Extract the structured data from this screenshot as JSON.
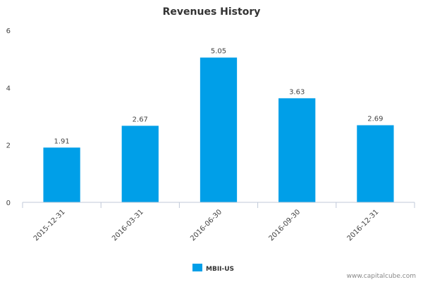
{
  "chart_data": {
    "type": "bar",
    "title": "Revenues History",
    "categories": [
      "2015-12-31",
      "2016-03-31",
      "2016-06-30",
      "2016-09-30",
      "2016-12-31"
    ],
    "series": [
      {
        "name": "MBII-US",
        "values": [
          1.91,
          2.67,
          5.05,
          3.63,
          2.69
        ]
      }
    ],
    "y_ticks": [
      0,
      2,
      4,
      6
    ],
    "ylim": [
      0,
      6
    ],
    "grid": false,
    "legend_position": "bottom-center",
    "bar_color": "#009fe8"
  },
  "credit": "www.capitalcube.com"
}
